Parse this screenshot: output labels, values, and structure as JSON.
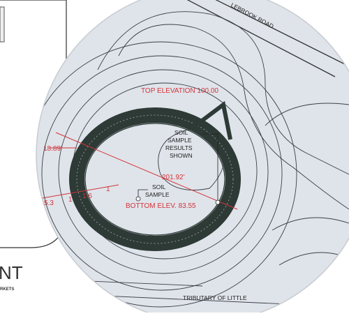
{
  "map": {
    "road_label": "LEBROOK ROAD",
    "top_elevation": "TOP ELEVATION 100.00",
    "side_dimension": "18.89'",
    "diameter": "201.92'",
    "soil_results": [
      "SOIL",
      "SAMPLE",
      "RESULTS",
      "SHOWN"
    ],
    "soil_sample": [
      "SOIL",
      "SAMPLE"
    ],
    "bottom_elevation": "BOTTOM ELEV. 83.55",
    "slope_left": [
      "5.3",
      "1"
    ],
    "slope_right": [
      "1.6",
      "1"
    ],
    "tributary": "TRIBUTARY OF LITTLE"
  },
  "logo": {
    "title": "NT",
    "subtitle": "RKETS"
  }
}
